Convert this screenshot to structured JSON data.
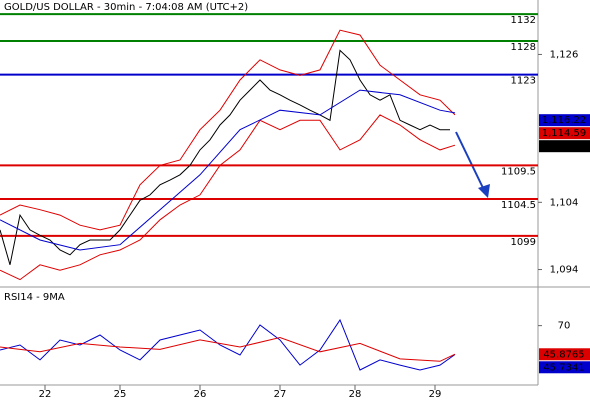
{
  "chart_data": [
    {
      "type": "line",
      "title": "GOLD/US DOLLAR - 30min - 7:04:08 AM (UTC+2)",
      "xlim": [
        0,
        107.6
      ],
      "ylim": [
        1091.7,
        1134.1
      ],
      "yticks": [
        {
          "value": 1126,
          "label": "1,126"
        },
        {
          "value": 1104,
          "label": "1,104"
        },
        {
          "value": 1094,
          "label": "1,094"
        }
      ],
      "levels": [
        {
          "value": 1132,
          "color": "#008000"
        },
        {
          "value": 1128,
          "color": "#008000"
        },
        {
          "value": 1123,
          "color": "#0000cc"
        },
        {
          "value": 1109.5,
          "color": "#dd0000"
        },
        {
          "value": 1104.5,
          "color": "#dd0000"
        },
        {
          "value": 1099,
          "color": "#dd0000"
        }
      ],
      "series": [
        {
          "color": "#000000",
          "x": [
            0,
            2,
            4,
            6,
            8,
            10,
            12,
            14,
            16,
            18,
            20,
            22,
            24,
            26,
            28,
            30,
            32,
            34,
            36,
            38,
            40,
            42,
            44,
            46,
            48,
            50,
            52,
            54,
            56,
            58,
            60,
            62,
            64,
            66,
            68,
            70,
            72,
            74,
            76,
            78,
            80,
            82,
            84,
            86,
            88,
            90
          ],
          "values": [
            1099.9,
            1094.7,
            1102.1,
            1099.9,
            1099.1,
            1098.4,
            1096.9,
            1096.2,
            1097.7,
            1098.4,
            1098.4,
            1098.4,
            1099.9,
            1102.1,
            1104.3,
            1105.1,
            1106.6,
            1107.3,
            1108.1,
            1109.5,
            1111.8,
            1113.3,
            1115.5,
            1117.0,
            1119.2,
            1120.7,
            1122.2,
            1120.7,
            1120.0,
            1119.2,
            1118.5,
            1117.7,
            1117.0,
            1116.2,
            1126.6,
            1125.2,
            1122.2,
            1120.0,
            1119.2,
            1120.0,
            1116.2,
            1115.5,
            1114.8,
            1115.5,
            1114.8,
            1114.8
          ]
        },
        {
          "color": "#dd0000",
          "x": [
            0,
            4,
            8,
            12,
            16,
            20,
            24,
            28,
            32,
            36,
            40,
            44,
            48,
            52,
            56,
            60,
            64,
            68,
            72,
            76,
            80,
            84,
            88,
            91
          ],
          "values": [
            1102.1,
            1103.6,
            1102.9,
            1102.1,
            1100.6,
            1099.9,
            1100.6,
            1106.6,
            1109.5,
            1110.3,
            1114.8,
            1117.7,
            1122.2,
            1125.2,
            1123.7,
            1122.9,
            1123.7,
            1129.6,
            1128.9,
            1124.4,
            1122.2,
            1120.0,
            1119.2,
            1117.0
          ]
        },
        {
          "color": "#dd0000",
          "x": [
            0,
            4,
            8,
            12,
            16,
            20,
            24,
            28,
            32,
            36,
            40,
            44,
            48,
            52,
            56,
            60,
            64,
            68,
            72,
            76,
            80,
            84,
            88,
            91
          ],
          "values": [
            1093.9,
            1092.5,
            1094.7,
            1093.9,
            1094.7,
            1096.2,
            1096.9,
            1098.4,
            1101.4,
            1103.6,
            1105.1,
            1109.5,
            1111.8,
            1116.2,
            1114.8,
            1116.2,
            1116.2,
            1111.8,
            1113.3,
            1117.0,
            1115.5,
            1113.3,
            1111.8,
            1112.5
          ]
        },
        {
          "color": "#0000cc",
          "x": [
            0,
            8,
            16,
            24,
            32,
            40,
            48,
            56,
            64,
            72,
            80,
            88,
            91
          ],
          "values": [
            1101.4,
            1098.4,
            1096.9,
            1097.7,
            1102.9,
            1108.1,
            1114.8,
            1117.7,
            1117.0,
            1120.7,
            1120.0,
            1117.7,
            1117.3
          ]
        }
      ],
      "last_values": [
        {
          "value": 1116.22,
          "label": "1,116.22",
          "color": "#0000cc"
        },
        {
          "value": 1114.59,
          "label": "1,114.59",
          "color": "#dd0000"
        },
        {
          "value": 1114.18,
          "label": "1,114.18",
          "color": "#000000"
        }
      ]
    },
    {
      "type": "line",
      "title": "RSI14 - 9MA",
      "xlim": [
        0,
        107.6
      ],
      "ylim": [
        20,
        100
      ],
      "yticks": [
        70
      ],
      "xticks": [
        {
          "value": 9,
          "label": "22"
        },
        {
          "value": 24,
          "label": "25"
        },
        {
          "value": 40,
          "label": "26"
        },
        {
          "value": 56,
          "label": "27"
        },
        {
          "value": 71,
          "label": "28"
        },
        {
          "value": 87,
          "label": "29"
        }
      ],
      "series": [
        {
          "color": "#0000cc",
          "x": [
            0,
            4,
            8,
            12,
            16,
            20,
            24,
            28,
            32,
            36,
            40,
            44,
            48,
            52,
            56,
            60,
            64,
            68,
            72,
            76,
            80,
            84,
            88,
            91
          ],
          "values": [
            49.5,
            53.7,
            41.1,
            57.9,
            53.7,
            62.1,
            49.5,
            41.1,
            57.9,
            62.1,
            66.3,
            53.7,
            45.3,
            70.5,
            57.9,
            36.8,
            49.5,
            74.7,
            32.6,
            41.1,
            36.8,
            32.6,
            36.8,
            45.7
          ]
        },
        {
          "color": "#dd0000",
          "x": [
            0,
            8,
            16,
            24,
            32,
            40,
            48,
            56,
            64,
            72,
            80,
            88,
            91
          ],
          "values": [
            52,
            48,
            55,
            52,
            50,
            58,
            52,
            60,
            48,
            55,
            42,
            40,
            45.9
          ]
        }
      ],
      "last_values": [
        {
          "value": 45.8765,
          "color": "#dd0000"
        },
        {
          "value": 45.7341,
          "color": "#0000cc"
        }
      ]
    }
  ]
}
